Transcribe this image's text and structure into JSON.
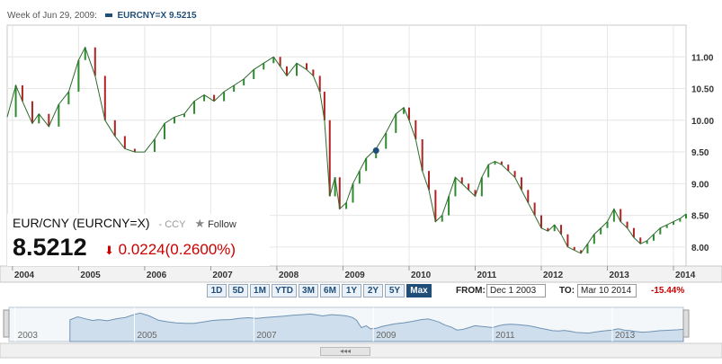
{
  "header": {
    "week_label": "Week of Jun 29, 2009:",
    "series_label": "EURCNY=X 9.5215"
  },
  "quote": {
    "name": "EUR/CNY (EURCNY=X)",
    "ccy": "- CCY",
    "follow": "Follow",
    "price": "8.5212",
    "change": "0.0224",
    "change_pct": "(0.2600%)",
    "down_color": "#cc0000"
  },
  "chart_data": {
    "type": "line",
    "ylim": [
      7.7,
      11.5
    ],
    "y_ticks": [
      "11.00",
      "10.50",
      "10.00",
      "9.50",
      "9.00",
      "8.50",
      "8.00"
    ],
    "y_tick_values": [
      11.0,
      10.5,
      10.0,
      9.5,
      9.0,
      8.5,
      8.0
    ],
    "x_ticks": [
      "2004",
      "2005",
      "2006",
      "2007",
      "2008",
      "2009",
      "2010",
      "2011",
      "2012",
      "2013",
      "2014"
    ],
    "x_tick_years": [
      2004,
      2005,
      2006,
      2007,
      2008,
      2009,
      2010,
      2011,
      2012,
      2013,
      2014
    ],
    "x_range": [
      2003.92,
      2014.19
    ],
    "series": [
      {
        "x": [
          2003.92,
          2004.05,
          2004.15,
          2004.3,
          2004.4,
          2004.55,
          2004.7,
          2004.85,
          2005.0,
          2005.1,
          2005.25,
          2005.4,
          2005.55,
          2005.7,
          2005.85,
          2006.0,
          2006.15,
          2006.3,
          2006.45,
          2006.6,
          2006.75,
          2006.9,
          2007.05,
          2007.2,
          2007.35,
          2007.5,
          2007.65,
          2007.8,
          2007.95,
          2008.05,
          2008.15,
          2008.3,
          2008.45,
          2008.55,
          2008.65,
          2008.72,
          2008.8,
          2008.88,
          2008.95,
          2009.05,
          2009.15,
          2009.25,
          2009.35,
          2009.5,
          2009.65,
          2009.8,
          2009.92,
          2010.0,
          2010.1,
          2010.2,
          2010.3,
          2010.4,
          2010.5,
          2010.6,
          2010.7,
          2010.8,
          2010.9,
          2011.0,
          2011.1,
          2011.2,
          2011.3,
          2011.4,
          2011.5,
          2011.6,
          2011.7,
          2011.8,
          2011.9,
          2012.0,
          2012.1,
          2012.2,
          2012.3,
          2012.4,
          2012.5,
          2012.6,
          2012.7,
          2012.8,
          2012.9,
          2013.0,
          2013.1,
          2013.2,
          2013.3,
          2013.4,
          2013.5,
          2013.6,
          2013.7,
          2013.8,
          2013.9,
          2014.0,
          2014.1,
          2014.19
        ],
        "y": [
          10.05,
          10.55,
          10.3,
          9.95,
          10.1,
          9.9,
          10.25,
          10.45,
          10.95,
          11.15,
          10.7,
          10.0,
          9.75,
          9.55,
          9.5,
          9.5,
          9.7,
          9.95,
          10.05,
          10.1,
          10.3,
          10.4,
          10.3,
          10.45,
          10.55,
          10.65,
          10.8,
          10.9,
          11.0,
          10.85,
          10.7,
          10.9,
          10.8,
          10.7,
          10.45,
          10.0,
          8.8,
          9.1,
          8.6,
          8.7,
          9.0,
          9.2,
          9.4,
          9.55,
          9.8,
          10.1,
          10.2,
          10.0,
          9.7,
          9.2,
          8.9,
          8.4,
          8.5,
          8.8,
          9.1,
          9.0,
          8.9,
          8.8,
          9.1,
          9.3,
          9.35,
          9.3,
          9.2,
          9.1,
          8.9,
          8.7,
          8.5,
          8.3,
          8.25,
          8.35,
          8.2,
          8.0,
          7.95,
          7.9,
          8.05,
          8.2,
          8.3,
          8.4,
          8.6,
          8.4,
          8.3,
          8.15,
          8.05,
          8.1,
          8.2,
          8.3,
          8.35,
          8.4,
          8.45,
          8.52
        ]
      }
    ]
  },
  "controls": {
    "ranges": [
      "1D",
      "5D",
      "1M",
      "YTD",
      "3M",
      "6M",
      "1Y",
      "2Y",
      "5Y",
      "Max"
    ],
    "active": "Max",
    "from_label": "FROM:",
    "from_value": "Dec 1 2003",
    "to_label": "TO:",
    "to_value": "Mar 10 2014",
    "change_pct": "-15.44%"
  },
  "navigator": {
    "labels": [
      "2003",
      "2005",
      "2007",
      "2009",
      "2011",
      "2013"
    ],
    "handle_glyph": "◂◂◂"
  }
}
